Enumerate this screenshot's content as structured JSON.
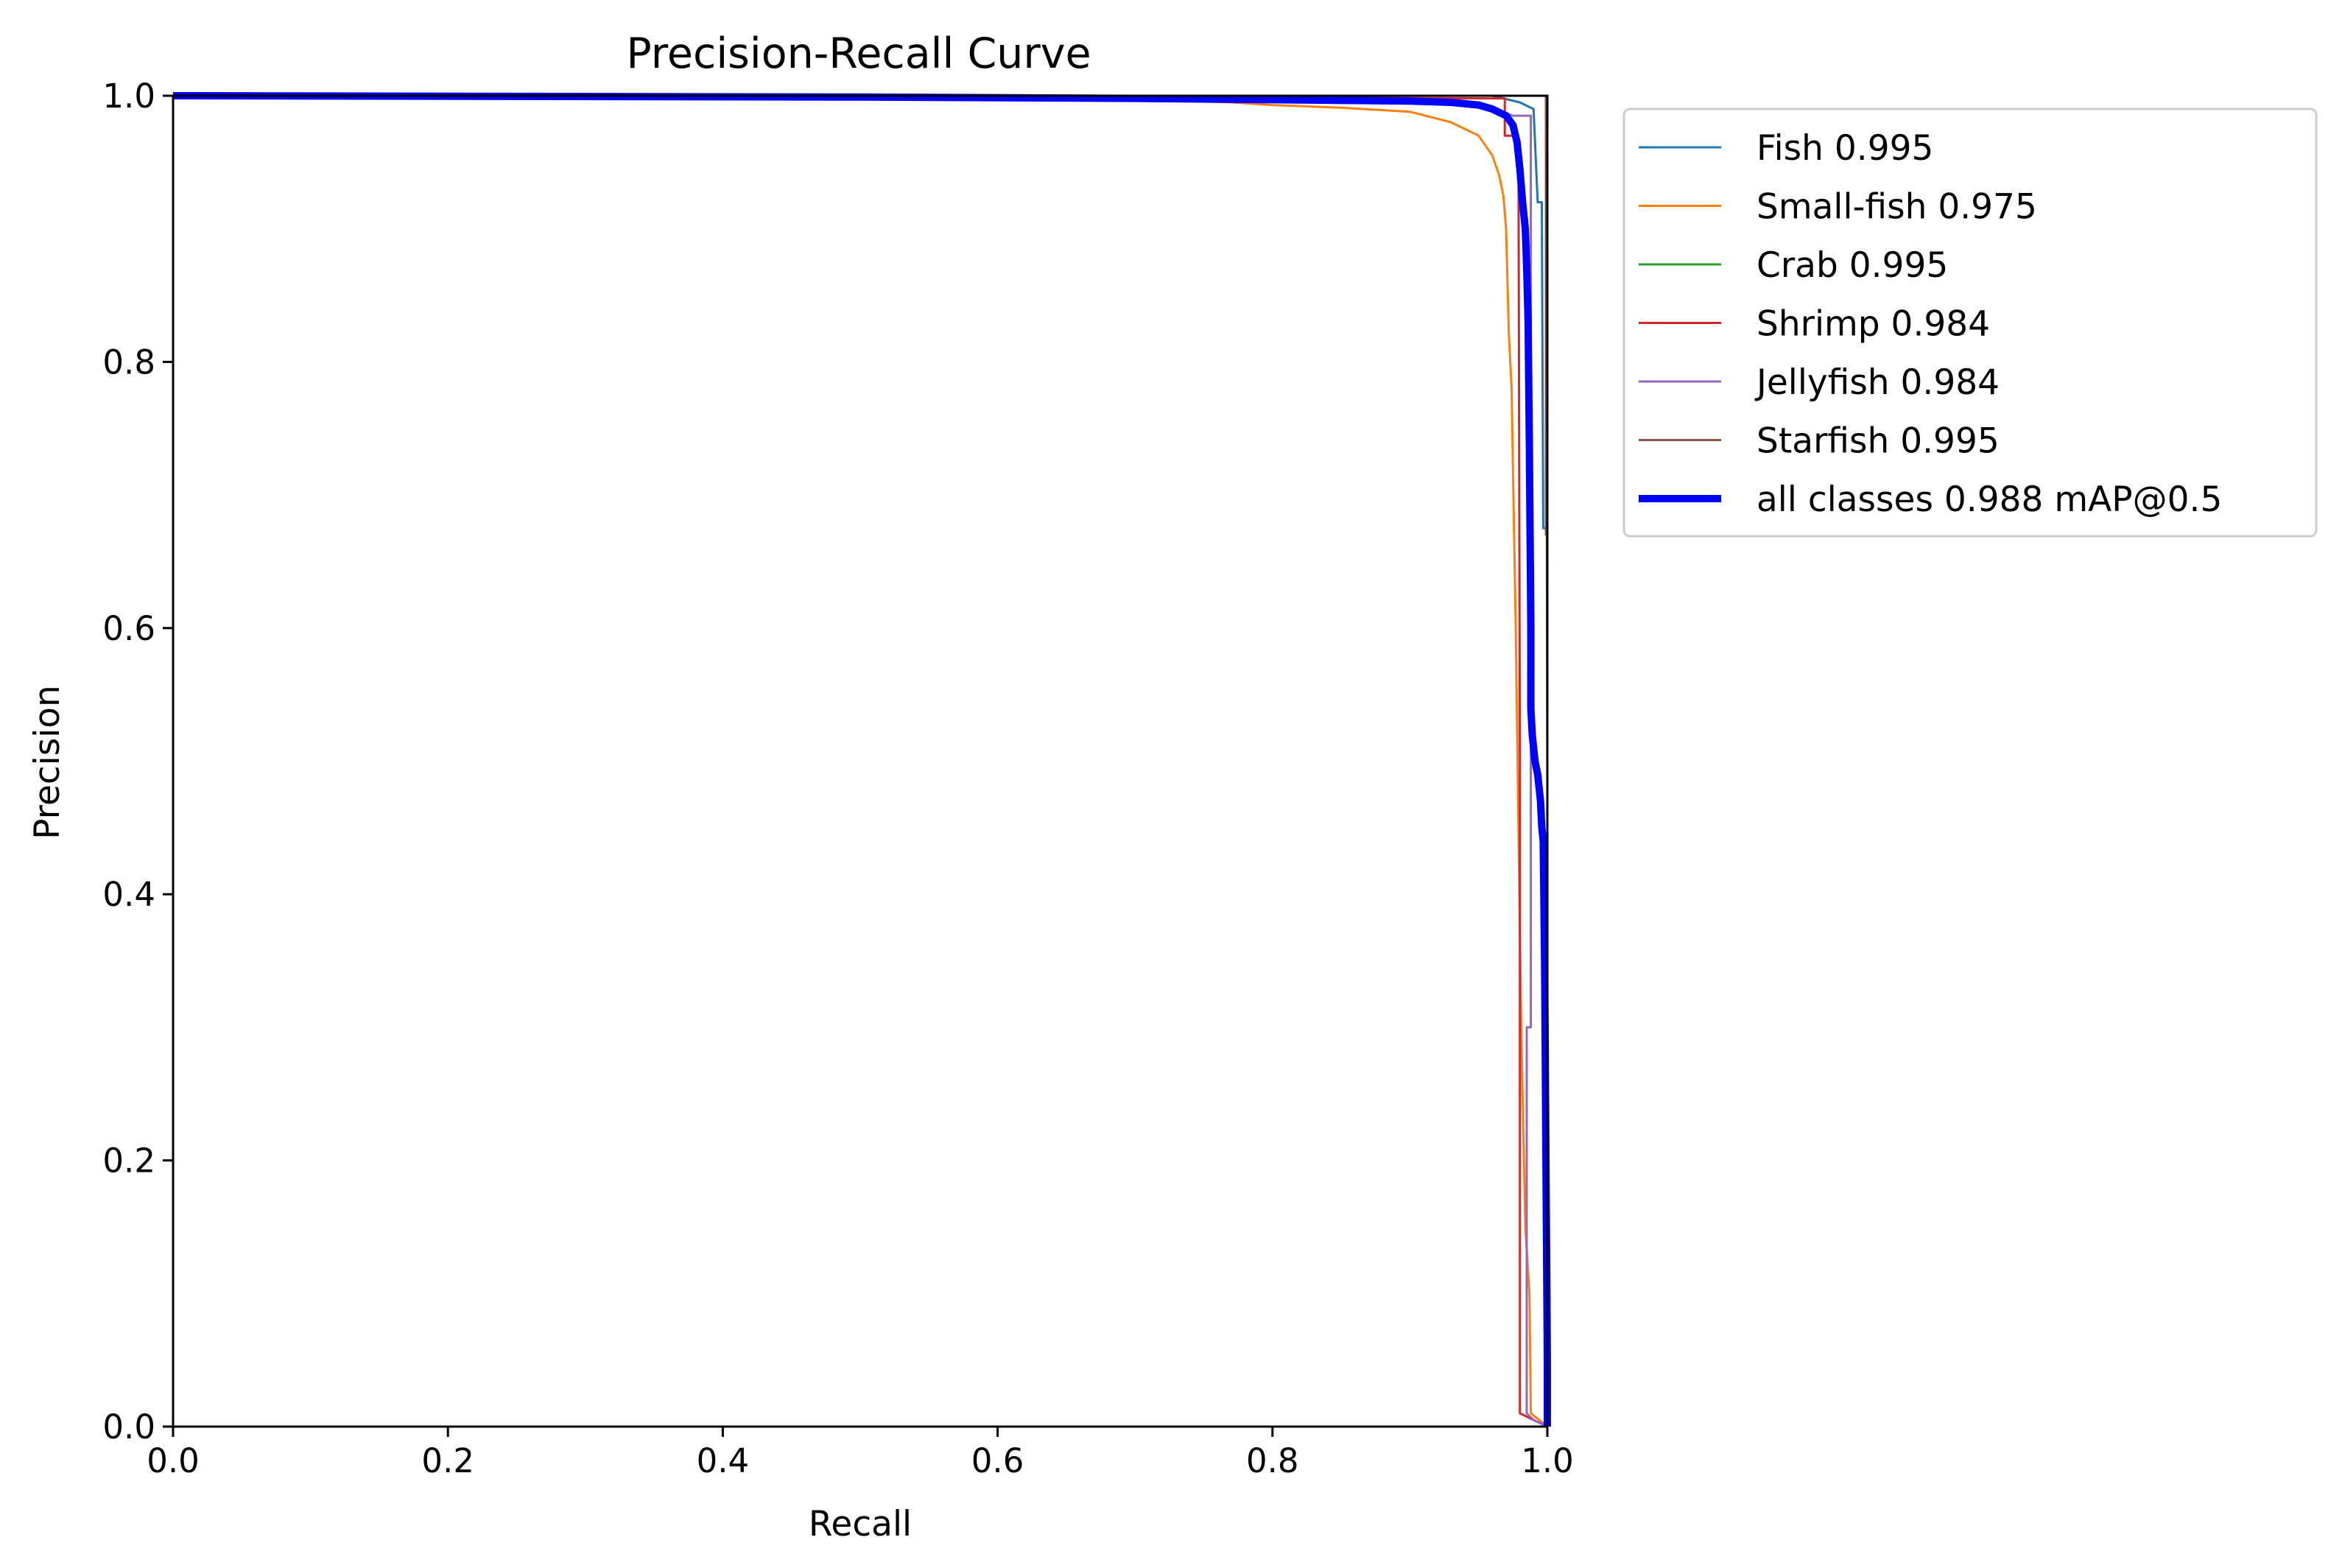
{
  "chart_data": {
    "type": "line",
    "title": "Precision-Recall Curve",
    "xlabel": "Recall",
    "ylabel": "Precision",
    "xlim": [
      0,
      1
    ],
    "ylim": [
      0,
      1
    ],
    "xticks": [
      "0.0",
      "0.2",
      "0.4",
      "0.6",
      "0.8",
      "1.0"
    ],
    "yticks": [
      "0.0",
      "0.2",
      "0.4",
      "0.6",
      "0.8",
      "1.0"
    ],
    "grid": false,
    "legend_position": "outside-top-right",
    "series": [
      {
        "name": "Fish 0.995",
        "color": "#1f77b4",
        "width": 1,
        "points": [
          [
            0,
            1
          ],
          [
            0.5,
            1
          ],
          [
            0.9,
            1
          ],
          [
            0.96,
            1
          ],
          [
            0.98,
            0.995
          ],
          [
            0.99,
            0.99
          ],
          [
            0.993,
            0.92
          ],
          [
            0.996,
            0.92
          ],
          [
            0.997,
            0.675
          ],
          [
            1.0,
            0.675
          ],
          [
            1.0,
            0
          ]
        ]
      },
      {
        "name": "Small-fish 0.975",
        "color": "#ff7f0e",
        "width": 1,
        "points": [
          [
            0,
            1
          ],
          [
            0.5,
            0.998
          ],
          [
            0.7,
            0.997
          ],
          [
            0.77,
            0.995
          ],
          [
            0.8,
            0.993
          ],
          [
            0.85,
            0.991
          ],
          [
            0.9,
            0.988
          ],
          [
            0.93,
            0.98
          ],
          [
            0.95,
            0.97
          ],
          [
            0.96,
            0.955
          ],
          [
            0.965,
            0.94
          ],
          [
            0.968,
            0.925
          ],
          [
            0.97,
            0.9
          ],
          [
            0.971,
            0.86
          ],
          [
            0.972,
            0.82
          ],
          [
            0.974,
            0.78
          ],
          [
            0.975,
            0.72
          ],
          [
            0.977,
            0.6
          ],
          [
            0.979,
            0.45
          ],
          [
            0.981,
            0.3
          ],
          [
            0.984,
            0.15
          ],
          [
            0.987,
            0.1
          ],
          [
            0.988,
            0.01
          ],
          [
            1.0,
            0.0
          ]
        ]
      },
      {
        "name": "Crab 0.995",
        "color": "#2ca02c",
        "width": 1,
        "points": [
          [
            0,
            1
          ],
          [
            0.5,
            1
          ],
          [
            0.97,
            1
          ],
          [
            0.99,
            1
          ],
          [
            0.999,
            1
          ],
          [
            1.0,
            0.48
          ],
          [
            1.0,
            0
          ]
        ]
      },
      {
        "name": "Shrimp 0.984",
        "color": "#d62728",
        "width": 1,
        "points": [
          [
            0,
            1
          ],
          [
            0.5,
            1
          ],
          [
            0.96,
            0.998
          ],
          [
            0.969,
            0.998
          ],
          [
            0.969,
            0.97
          ],
          [
            0.975,
            0.97
          ],
          [
            0.979,
            0.96
          ],
          [
            0.98,
            0.5
          ],
          [
            0.98,
            0.01
          ],
          [
            0.99,
            0.005
          ],
          [
            1.0,
            0
          ]
        ]
      },
      {
        "name": "Jellyfish 0.984",
        "color": "#9467bd",
        "width": 1,
        "points": [
          [
            0,
            1
          ],
          [
            0.5,
            1
          ],
          [
            0.95,
            0.995
          ],
          [
            0.96,
            0.99
          ],
          [
            0.975,
            0.985
          ],
          [
            0.988,
            0.985
          ],
          [
            0.988,
            0.3
          ],
          [
            0.985,
            0.3
          ],
          [
            0.985,
            0.01
          ],
          [
            0.99,
            0.005
          ],
          [
            1.0,
            0
          ]
        ]
      },
      {
        "name": "Starfish 0.995",
        "color": "#8c564b",
        "width": 1,
        "points": [
          [
            0,
            1
          ],
          [
            0.5,
            1
          ],
          [
            0.99,
            1
          ],
          [
            0.999,
            1
          ],
          [
            0.999,
            0.67
          ],
          [
            1.0,
            0.67
          ],
          [
            1.0,
            0
          ]
        ]
      },
      {
        "name": "all classes 0.988 mAP@0.5",
        "color": "#0000ff",
        "width": 3,
        "points": [
          [
            0,
            1
          ],
          [
            0.5,
            0.999
          ],
          [
            0.7,
            0.998
          ],
          [
            0.8,
            0.997
          ],
          [
            0.9,
            0.996
          ],
          [
            0.93,
            0.995
          ],
          [
            0.95,
            0.993
          ],
          [
            0.96,
            0.99
          ],
          [
            0.97,
            0.985
          ],
          [
            0.975,
            0.978
          ],
          [
            0.978,
            0.965
          ],
          [
            0.98,
            0.945
          ],
          [
            0.982,
            0.92
          ],
          [
            0.984,
            0.9
          ],
          [
            0.985,
            0.87
          ],
          [
            0.986,
            0.83
          ],
          [
            0.987,
            0.73
          ],
          [
            0.988,
            0.6
          ],
          [
            0.988,
            0.54
          ],
          [
            0.989,
            0.52
          ],
          [
            0.991,
            0.5
          ],
          [
            0.993,
            0.49
          ],
          [
            0.995,
            0.47
          ],
          [
            0.996,
            0.45
          ],
          [
            0.997,
            0.44
          ],
          [
            0.998,
            0.35
          ],
          [
            0.999,
            0.2
          ],
          [
            1.0,
            0.05
          ],
          [
            1.0,
            0
          ]
        ]
      }
    ]
  }
}
